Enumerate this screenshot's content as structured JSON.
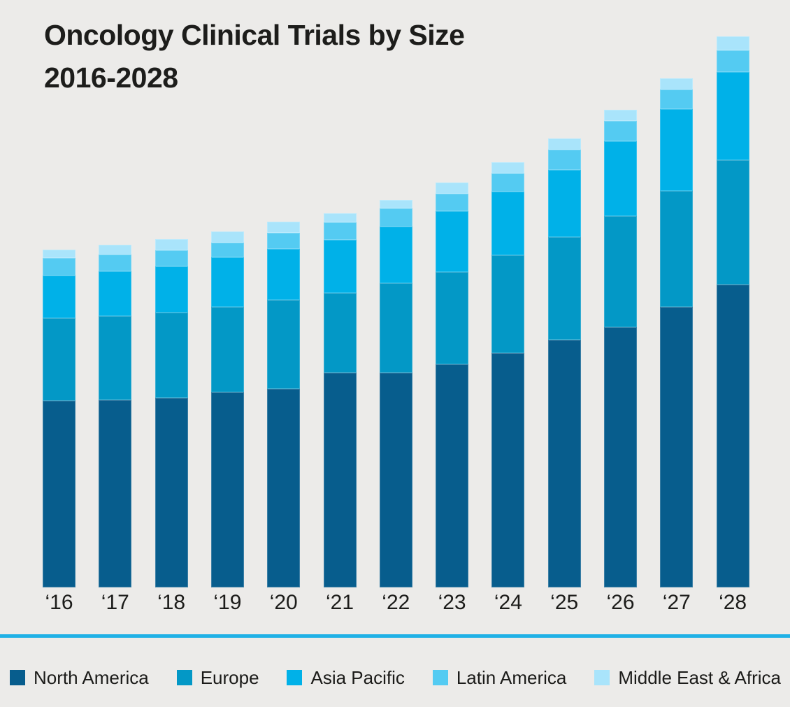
{
  "header": {
    "title_line1": "Oncology Clinical Trials by Size",
    "title_line2": "2016-2028"
  },
  "colors": {
    "background": "#ECEBE9",
    "title_text": "#1D1D1B",
    "axis_label_text": "#1C1C1A",
    "divider": "#1FB1E6"
  },
  "chart_data": {
    "type": "bar",
    "stacked": true,
    "title": "Oncology Clinical Trials by Size 2016-2028",
    "xlabel": "",
    "ylabel": "",
    "yaxis_visible": false,
    "grid": false,
    "legend_position": "bottom",
    "ylim": [
      0,
      800
    ],
    "categories": [
      "‘16",
      "‘17",
      "‘18",
      "‘19",
      "‘20",
      "‘21",
      "‘22",
      "‘23",
      "‘24",
      "‘25",
      "‘26",
      "‘27",
      "‘28"
    ],
    "series": [
      {
        "name": "North America",
        "color": "#075D8D",
        "values": [
          267,
          268,
          271,
          279,
          284,
          307,
          307,
          319,
          335,
          354,
          372,
          401,
          433
        ]
      },
      {
        "name": "Europe",
        "color": "#0398C6",
        "values": [
          118,
          120,
          122,
          122,
          127,
          114,
          128,
          132,
          140,
          147,
          159,
          166,
          178
        ]
      },
      {
        "name": "Asia Pacific",
        "color": "#00B1E8",
        "values": [
          61,
          64,
          66,
          71,
          73,
          76,
          81,
          87,
          91,
          96,
          107,
          117,
          126
        ]
      },
      {
        "name": "Latin America",
        "color": "#54CBF2",
        "values": [
          25,
          24,
          23,
          21,
          23,
          25,
          26,
          25,
          26,
          29,
          29,
          28,
          31
        ]
      },
      {
        "name": "Middle East & Africa",
        "color": "#A9E4FB",
        "values": [
          12,
          14,
          16,
          16,
          16,
          13,
          12,
          16,
          16,
          16,
          16,
          16,
          20
        ]
      }
    ],
    "totals": [
      483,
      490,
      498,
      509,
      523,
      535,
      554,
      579,
      608,
      642,
      682,
      728,
      788
    ]
  }
}
